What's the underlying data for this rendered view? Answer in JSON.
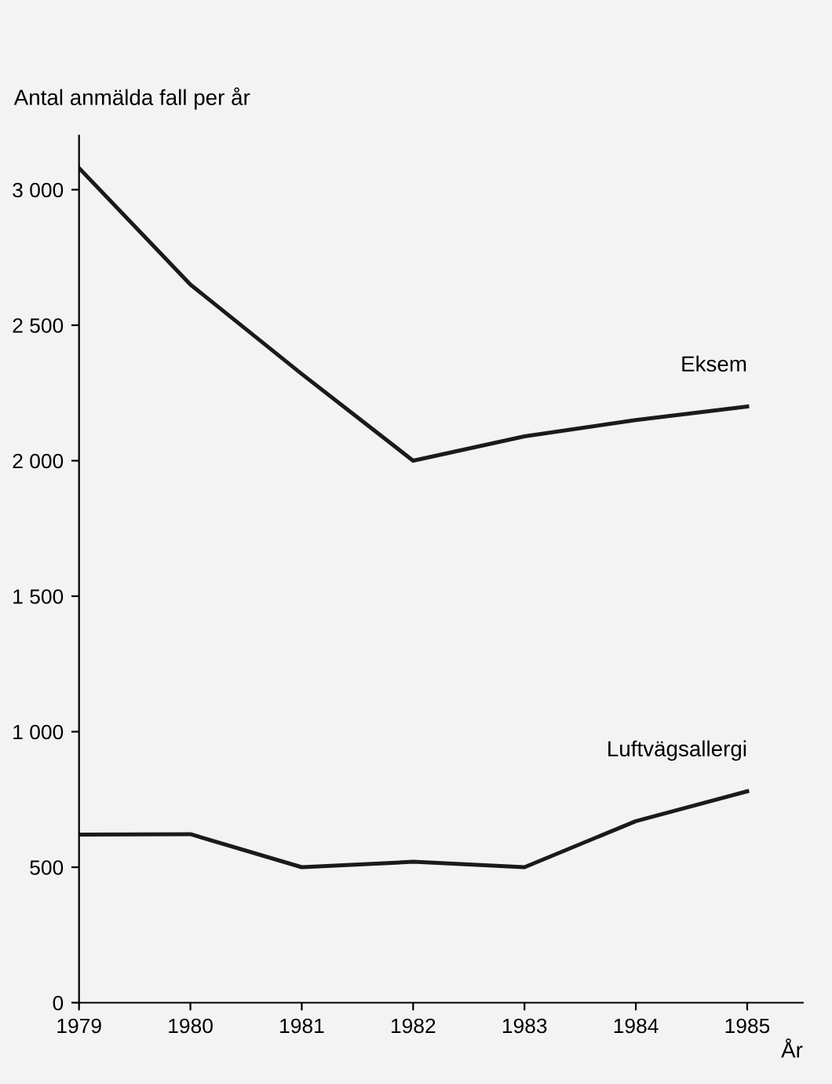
{
  "chart_data": {
    "type": "line",
    "ylabel": "Antal anmälda fall per år",
    "xlabel": "År",
    "x": [
      1979,
      1980,
      1981,
      1982,
      1983,
      1984,
      1985
    ],
    "series": [
      {
        "name": "Eksem",
        "color": "#1a1a1a",
        "values": [
          3080,
          2650,
          2320,
          2000,
          2090,
          2150,
          2200
        ]
      },
      {
        "name": "Luftvägsallergi",
        "color": "#1a1a1a",
        "values": [
          620,
          622,
          500,
          520,
          500,
          670,
          780
        ]
      }
    ],
    "xlim": [
      1979,
      1985.5
    ],
    "xticks": [
      1979,
      1980,
      1981,
      1982,
      1983,
      1984,
      1985
    ],
    "ylim": [
      0,
      3200
    ],
    "yticks": [
      0,
      500,
      {
        "value": 1000,
        "label": "1 000"
      },
      {
        "value": 1500,
        "label": "1 500"
      },
      {
        "value": 2000,
        "label": "2 000"
      },
      {
        "value": 2500,
        "label": "2 500"
      },
      {
        "value": 3000,
        "label": "3 000"
      }
    ],
    "grid": false,
    "legend": false,
    "marker": "none",
    "line_style": "solid"
  }
}
